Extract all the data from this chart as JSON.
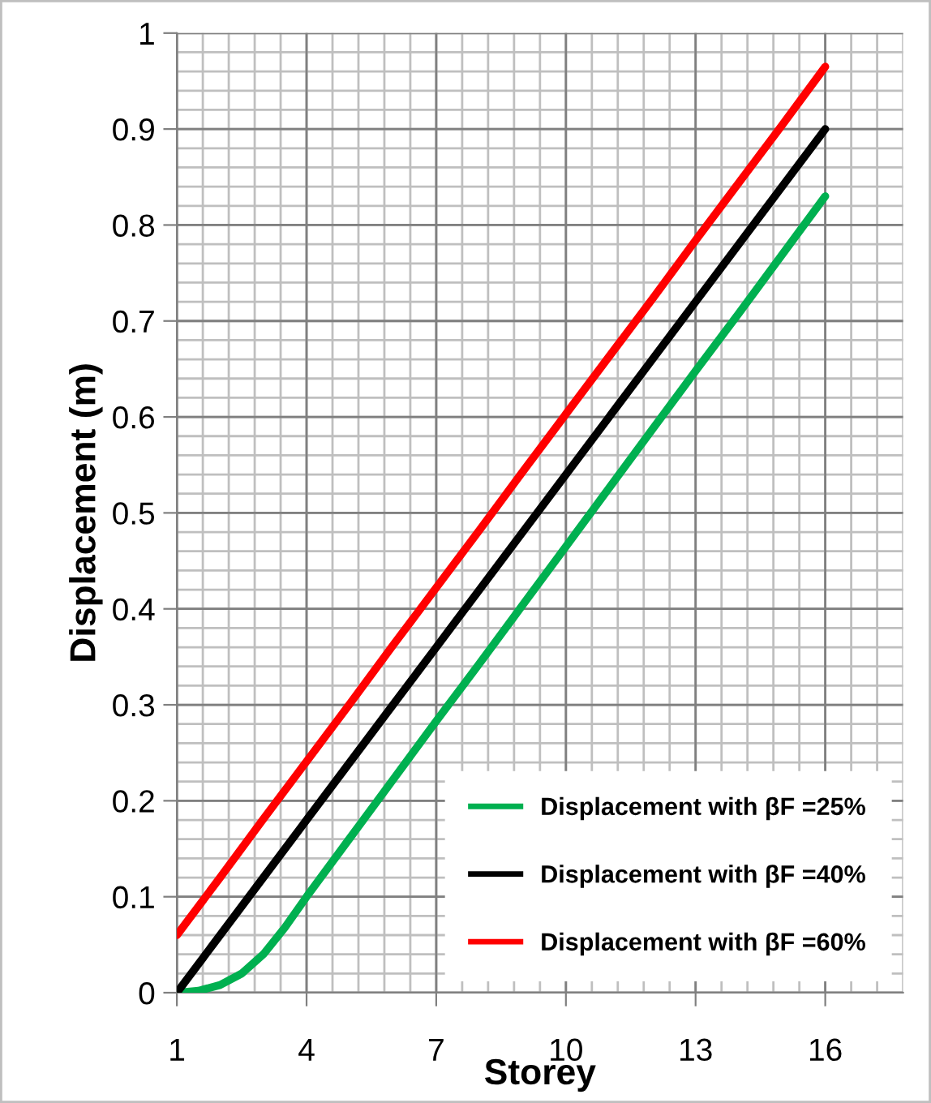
{
  "chart_data": {
    "type": "line",
    "xlabel": "Storey",
    "ylabel": "Displacement (m)",
    "xlim": [
      1,
      17.8
    ],
    "xticks": [
      1,
      4,
      7,
      10,
      13,
      16
    ],
    "ylim": [
      0,
      1
    ],
    "yticks": [
      0,
      0.1,
      0.2,
      0.3,
      0.4,
      0.5,
      0.6,
      0.7,
      0.8,
      0.9,
      1
    ],
    "grid": true,
    "legend": "bottom right",
    "marker": "none",
    "line_style": "solid",
    "series": [
      {
        "name": "Displacement with βF =25%",
        "color": "#00b050",
        "x": [
          1,
          1.5,
          2,
          2.5,
          3,
          3.5,
          4,
          5,
          6,
          7,
          8,
          9,
          10,
          11,
          12,
          13,
          14,
          15,
          16
        ],
        "values": [
          0,
          0.002,
          0.008,
          0.02,
          0.04,
          0.068,
          0.1,
          0.161,
          0.222,
          0.283,
          0.343,
          0.404,
          0.465,
          0.526,
          0.587,
          0.648,
          0.708,
          0.769,
          0.83
        ]
      },
      {
        "name": "Displacement with βF =40%",
        "color": "#000000",
        "x": [
          1,
          2,
          3,
          4,
          5,
          6,
          7,
          8,
          9,
          10,
          11,
          12,
          13,
          14,
          15,
          16
        ],
        "values": [
          0,
          0.06,
          0.12,
          0.18,
          0.24,
          0.3,
          0.36,
          0.42,
          0.48,
          0.54,
          0.6,
          0.66,
          0.72,
          0.78,
          0.84,
          0.9
        ]
      },
      {
        "name": "Displacement with βF =60%",
        "color": "#ff0000",
        "x": [
          1,
          2,
          3,
          4,
          5,
          6,
          7,
          8,
          9,
          10,
          11,
          12,
          13,
          14,
          15,
          16
        ],
        "values": [
          0.06,
          0.12,
          0.181,
          0.241,
          0.301,
          0.362,
          0.422,
          0.482,
          0.543,
          0.603,
          0.663,
          0.723,
          0.784,
          0.844,
          0.904,
          0.965
        ]
      }
    ]
  }
}
